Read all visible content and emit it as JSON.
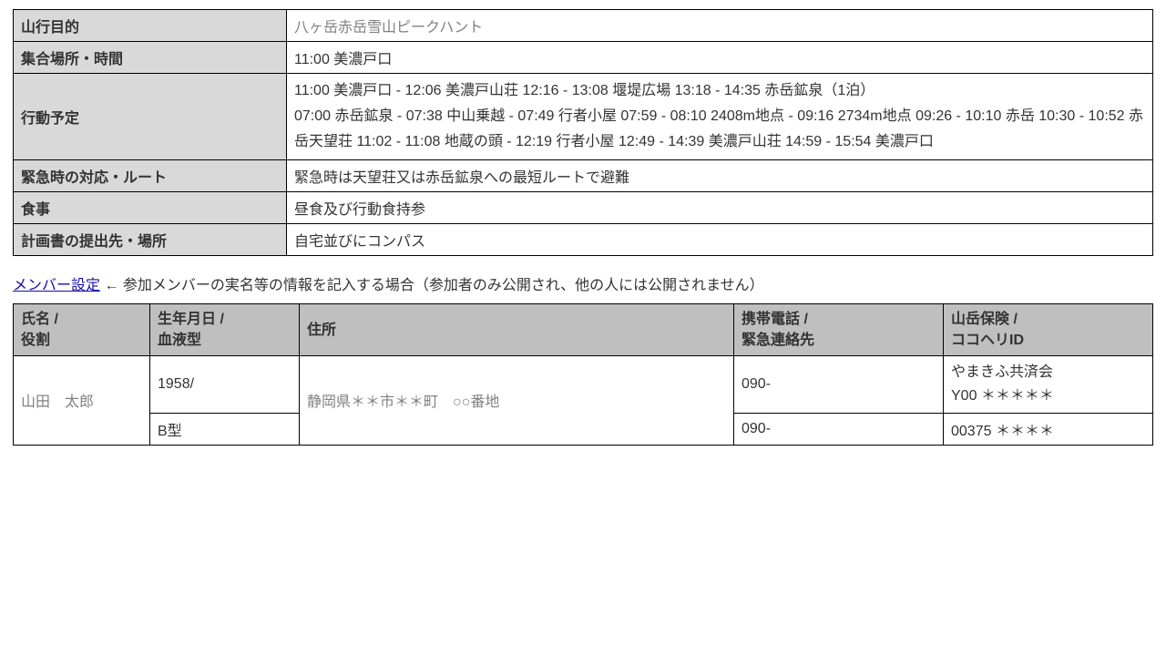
{
  "plan": {
    "rows": [
      {
        "label": "山行目的",
        "value": "八ヶ岳赤岳雪山ピークハント",
        "muted": true
      },
      {
        "label": "集合場所・時間",
        "value": "11:00 美濃戸口",
        "muted": false
      },
      {
        "label": "行動予定",
        "value": "11:00 美濃戸口 - 12:06 美濃戸山荘 12:16 - 13:08 堰堤広場 13:18 - 14:35 赤岳鉱泉（1泊）\n07:00 赤岳鉱泉 - 07:38 中山乗越 - 07:49 行者小屋 07:59 - 08:10 2408m地点 - 09:16 2734m地点 09:26 - 10:10 赤岳 10:30 - 10:52 赤岳天望荘 11:02 - 11:08 地蔵の頭 - 12:19 行者小屋 12:49 - 14:39 美濃戸山荘 14:59 - 15:54 美濃戸口",
        "muted": false
      },
      {
        "label": "緊急時の対応・ルート",
        "value": "緊急時は天望荘又は赤岳鉱泉への最短ルートで避難",
        "muted": false
      },
      {
        "label": "食事",
        "value": "昼食及び行動食持参",
        "muted": false
      },
      {
        "label": "計画書の提出先・場所",
        "value": "自宅並びにコンパス",
        "muted": false
      }
    ]
  },
  "memberLink": {
    "text": "メンバー設定"
  },
  "memberNote": " ← 参加メンバーの実名等の情報を記入する場合（参加者のみ公開され、他の人には公開されません）",
  "memberHeaders": {
    "name": "氏名 /\n役割",
    "birth": "生年月日 /\n血液型",
    "addr": "住所",
    "phone": "携帯電話 /\n緊急連絡先",
    "ins": "山岳保険 /\nココヘリID"
  },
  "memberRows": {
    "r1": {
      "name": "山田　太郎",
      "birth": "1958/",
      "addr": "静岡県＊＊市＊＊町　○○番地",
      "phone": "090-",
      "ins": "やまきふ共済会\nY00 ＊＊＊＊＊"
    },
    "r2": {
      "name": "",
      "birth": "B型",
      "phone": "090-",
      "ins": "00375 ＊＊＊＊"
    }
  },
  "colors": {
    "headerBg": "#d9d9d9",
    "memberHeaderBg": "#bfbfbf",
    "text": "#333333",
    "muted": "#808080",
    "link": "#1a0dab",
    "border": "#000000"
  }
}
